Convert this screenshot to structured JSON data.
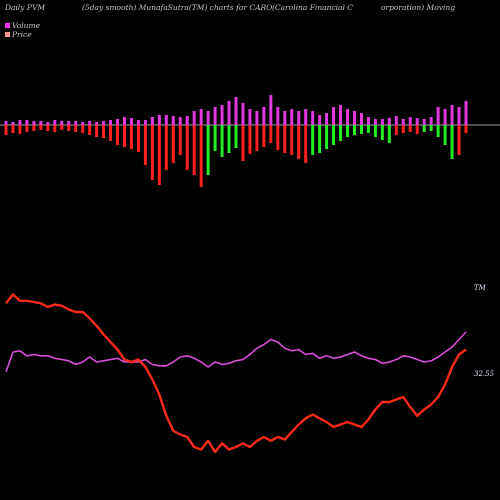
{
  "header": {
    "left": "Daily PVM",
    "middle": "(5day smooth) MunafaSutra(TM) charts for CARO",
    "right1": "(Carolina  Financial  C",
    "right2": "orporation) Moving"
  },
  "legend": {
    "volume_label": "Volume",
    "price_label": "Price",
    "volume_color": "#ff33ff",
    "price_color": "#ff9999"
  },
  "chart_data": [
    {
      "type": "bar",
      "title": "Volume",
      "x": [
        1,
        2,
        3,
        4,
        5,
        6,
        7,
        8,
        9,
        10,
        11,
        12,
        13,
        14,
        15,
        16,
        17,
        18,
        19,
        20,
        21,
        22,
        23,
        24,
        25,
        26,
        27,
        28,
        29,
        30,
        31,
        32,
        33,
        34,
        35,
        36,
        37,
        38,
        39,
        40,
        41,
        42,
        43,
        44,
        45,
        46,
        47,
        48,
        49,
        50,
        51,
        52,
        53,
        54,
        55,
        56,
        57,
        58,
        59,
        60,
        61,
        62,
        63,
        64,
        65,
        66,
        67
      ],
      "values": [
        -10,
        -8,
        -9,
        -7,
        -6,
        -5,
        -6,
        -7,
        -5,
        -6,
        -7,
        -8,
        -10,
        -12,
        -13,
        -16,
        -20,
        -22,
        -24,
        -27,
        -40,
        -55,
        -60,
        -45,
        -38,
        -30,
        -45,
        -50,
        -62,
        -50,
        -26,
        -32,
        -28,
        -23,
        -36,
        -29,
        -26,
        -22,
        -18,
        -25,
        -28,
        -30,
        -34,
        -38,
        -30,
        -28,
        -24,
        -20,
        -16,
        -12,
        -10,
        -9,
        -8,
        -12,
        -15,
        -18,
        -10,
        -8,
        -7,
        -9,
        -7,
        -6,
        -12,
        -20,
        -34,
        -30,
        -8
      ],
      "up": [
        -4,
        -3,
        -5,
        -5,
        -4,
        -4,
        -3,
        -5,
        -4,
        -4,
        -4,
        -3,
        -4,
        -3,
        -4,
        -5,
        -6,
        -8,
        -7,
        -5,
        -5,
        -8,
        -10,
        -10,
        -9,
        -8,
        -9,
        -14,
        -16,
        -14,
        -18,
        -20,
        -24,
        -28,
        -22,
        -16,
        -14,
        -18,
        -30,
        -18,
        -14,
        -16,
        -14,
        -16,
        -14,
        -10,
        -12,
        -18,
        -20,
        -16,
        -14,
        -12,
        -8,
        -6,
        -6,
        -7,
        -9,
        -6,
        -8,
        -7,
        -6,
        -8,
        -18,
        -16,
        -20,
        -18,
        -24
      ],
      "baseline": 0
    },
    {
      "type": "line",
      "series": [
        {
          "name": "Volume",
          "color": "#d94fd9",
          "values": [
            0,
            16,
            17,
            13,
            14,
            13,
            13,
            11,
            10,
            9,
            6,
            8,
            12,
            8,
            9,
            10,
            11,
            8,
            8,
            8,
            10,
            6,
            5,
            5,
            8,
            12,
            13,
            11,
            8,
            4,
            8,
            6,
            7,
            9,
            10,
            14,
            19,
            22,
            26,
            24,
            19,
            17,
            18,
            14,
            15,
            11,
            13,
            11,
            12,
            14,
            16,
            13,
            11,
            10,
            7,
            8,
            10,
            13,
            12,
            10,
            8,
            9,
            12,
            16,
            20,
            26,
            32
          ]
        },
        {
          "name": "Price",
          "color": "#ff2a1a",
          "last_label": "32.55",
          "values": [
            55,
            62,
            57,
            57,
            56,
            55,
            52,
            54,
            53,
            50,
            48,
            48,
            43,
            37,
            30,
            24,
            18,
            10,
            8,
            10,
            4,
            -6,
            -18,
            -35,
            -47,
            -50,
            -52,
            -60,
            -62,
            -55,
            -64,
            -57,
            -62,
            -60,
            -57,
            -60,
            -55,
            -52,
            -55,
            -52,
            -54,
            -48,
            -42,
            -37,
            -34,
            -37,
            -40,
            -44,
            -42,
            -40,
            -42,
            -44,
            -38,
            -30,
            -24,
            -24,
            -22,
            -20,
            -28,
            -35,
            -30,
            -26,
            -20,
            -10,
            4,
            14,
            18
          ]
        }
      ],
      "right_label_top": "TM"
    }
  ]
}
